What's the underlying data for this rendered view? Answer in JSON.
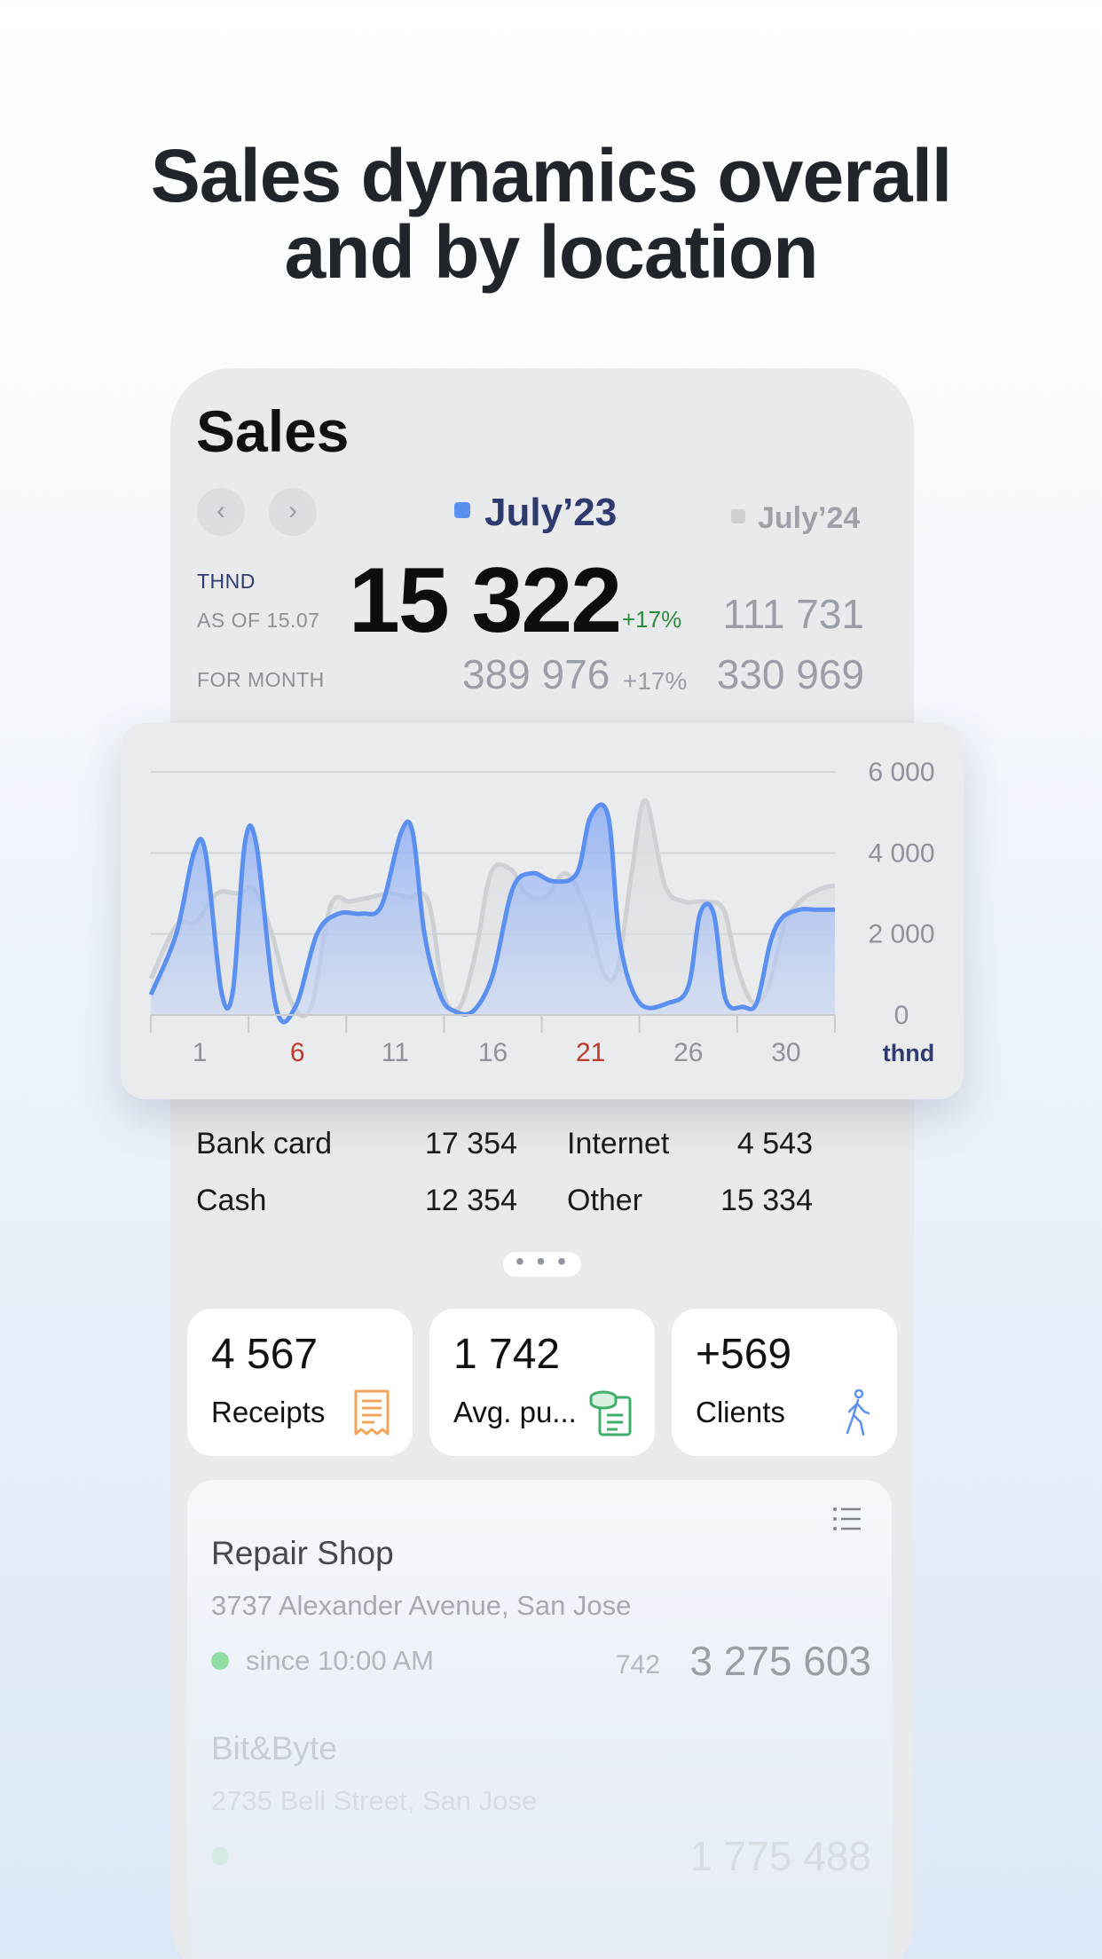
{
  "headline": {
    "line1": "Sales dynamics overall",
    "line2": "and by location"
  },
  "sales": {
    "title": "Sales",
    "nav": {
      "prev": "‹",
      "next": "›"
    },
    "legend": {
      "current": "July’23",
      "previous": "July’24",
      "current_color": "#5b8ff0",
      "previous_color": "#cfd1d5"
    },
    "unit_label": "THND",
    "as_of_label": "AS OF 15.07",
    "today_value": "15 322",
    "today_change": "+17%",
    "today_prev_value": "111 731",
    "month_label": "FOR MONTH",
    "month_value": "389 976",
    "month_change": "+17%",
    "month_prev_value": "330 969"
  },
  "chart_data": {
    "type": "area",
    "title": "",
    "xlabel": "",
    "ylabel": "thnd",
    "ylim": [
      0,
      6000
    ],
    "yticks": [
      "6 000",
      "4 000",
      "2 000",
      "0"
    ],
    "xticks": [
      {
        "label": "1",
        "day": 1,
        "weekend": false
      },
      {
        "label": "6",
        "day": 6,
        "weekend": true
      },
      {
        "label": "11",
        "day": 11,
        "weekend": false
      },
      {
        "label": "16",
        "day": 16,
        "weekend": false
      },
      {
        "label": "21",
        "day": 21,
        "weekend": true
      },
      {
        "label": "26",
        "day": 26,
        "weekend": false
      },
      {
        "label": "30",
        "day": 30,
        "weekend": false
      }
    ],
    "x_range": [
      0,
      35
    ],
    "series": [
      {
        "name": "July’23",
        "color": "#5b8ff0",
        "x": [
          0,
          1.3,
          2.2,
          2.8,
          3.6,
          4.2,
          4.8,
          5.4,
          6.4,
          7.4,
          8.5,
          9.6,
          10.8,
          11.8,
          12.8,
          13.4,
          14.0,
          14.8,
          15.5,
          16.5,
          17.5,
          18.5,
          19.5,
          20.6,
          21.8,
          22.5,
          23.4,
          24.0,
          25.0,
          26.5,
          27.5,
          28.1,
          28.8,
          29.4,
          30.3,
          31.0,
          31.7,
          32.3,
          33.2,
          34.0,
          35.0
        ],
        "values": [
          500,
          2000,
          4000,
          4000,
          600,
          600,
          4200,
          4200,
          200,
          200,
          2000,
          2500,
          2500,
          2700,
          4500,
          4500,
          2000,
          500,
          100,
          100,
          1000,
          3100,
          3500,
          3300,
          3500,
          4900,
          4900,
          1800,
          300,
          300,
          700,
          2500,
          2500,
          400,
          200,
          300,
          1800,
          2400,
          2600,
          2600,
          2600
        ]
      },
      {
        "name": "July’24",
        "color": "#cfd1d5",
        "x": [
          0,
          1.3,
          2.3,
          3.4,
          4.5,
          5.3,
          6.2,
          7.2,
          8.2,
          9.2,
          10.2,
          11.2,
          12.2,
          13.2,
          14.2,
          15.0,
          15.8,
          16.6,
          17.4,
          18.4,
          19.2,
          20.2,
          21.2,
          22.2,
          23.2,
          23.9,
          24.6,
          25.3,
          26.3,
          27.3,
          28.3,
          29.3,
          30.0,
          30.8,
          31.6,
          32.4,
          33.2,
          34.2,
          35.0
        ],
        "values": [
          900,
          2200,
          2300,
          3000,
          3000,
          3100,
          2000,
          300,
          200,
          2700,
          2800,
          2900,
          3000,
          2900,
          2800,
          500,
          200,
          1500,
          3500,
          3600,
          3000,
          2900,
          3500,
          2700,
          1000,
          1200,
          3500,
          5300,
          3200,
          2800,
          2800,
          2600,
          1200,
          300,
          700,
          2200,
          2800,
          3100,
          3200
        ]
      }
    ]
  },
  "payments": [
    {
      "label": "Bank card",
      "value": "17 354"
    },
    {
      "label": "Internet",
      "value": "4 543"
    },
    {
      "label": "Cash",
      "value": "12 354"
    },
    {
      "label": "Other",
      "value": "15 334"
    }
  ],
  "more_label": "• • •",
  "stats": [
    {
      "value": "4 567",
      "label": "Receipts",
      "icon": "receipt-icon",
      "color": "#f0a55a"
    },
    {
      "value": "1 742",
      "label": "Avg. pu...",
      "icon": "coins-document-icon",
      "color": "#3fae6a"
    },
    {
      "value": "+569",
      "label": "Clients",
      "icon": "walking-person-icon",
      "color": "#5b8ff0"
    }
  ],
  "locations": [
    {
      "name": "Repair Shop",
      "address": "3737 Alexander Avenue, San Jose",
      "status": "since 10:00 AM",
      "status_color": "#92dca3",
      "count": "742",
      "total": "3 275 603"
    },
    {
      "name": "Bit&Byte",
      "address": "2735 Bell Street, San Jose",
      "status": "",
      "status_color": "#92dca3",
      "count": "",
      "total": "1 775 488"
    }
  ]
}
